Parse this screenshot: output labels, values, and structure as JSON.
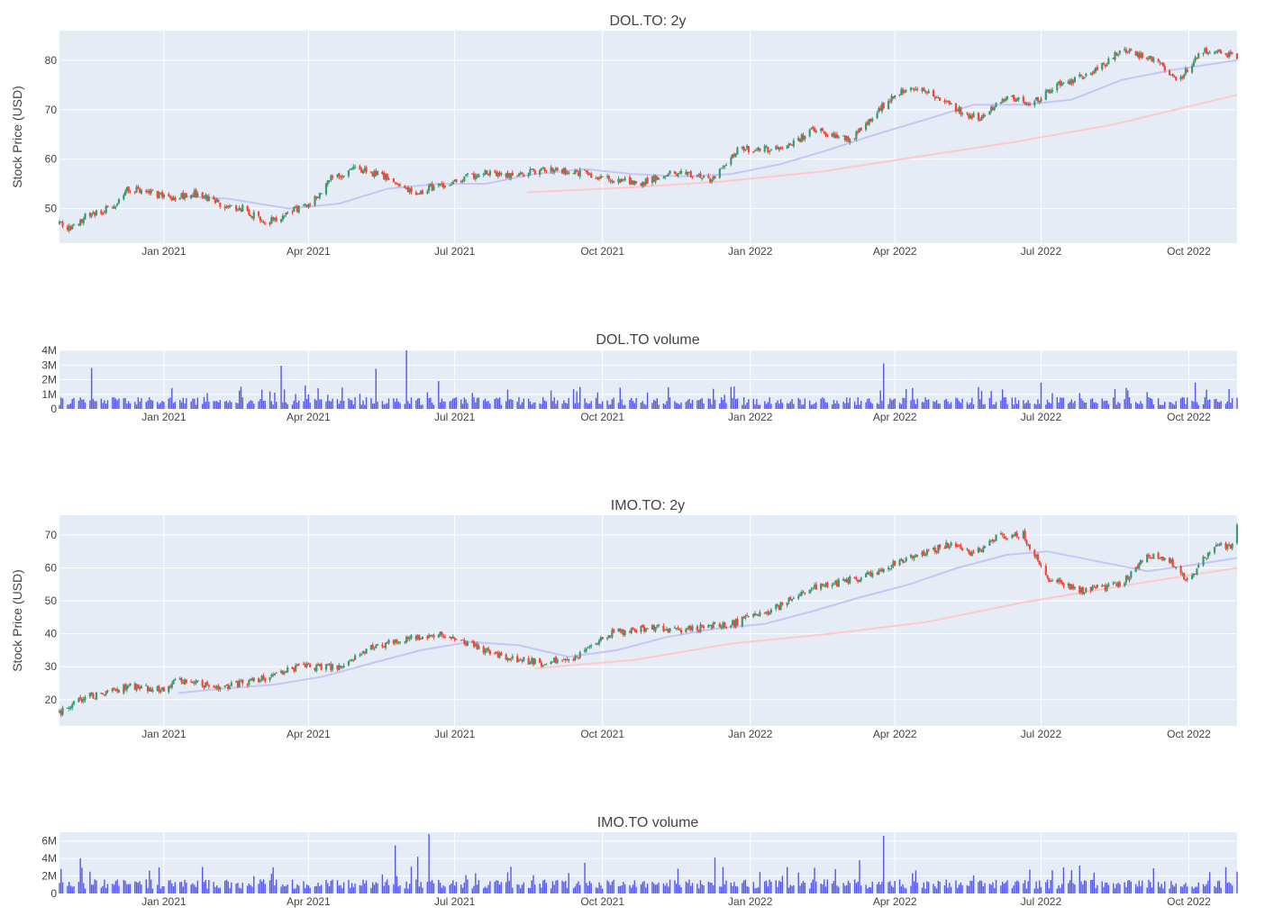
{
  "colors": {
    "plot_bg": "#e5ecf6",
    "grid": "#ffffff",
    "up": "#3d9970",
    "down": "#ff4136",
    "ma_short": "#c5c5f7",
    "ma_long": "#ffc8c8",
    "volume": "#5656f0"
  },
  "chart_data": [
    {
      "id": "dol-price",
      "type": "candlestick",
      "title": "DOL.TO:  2y",
      "ylabel": "Stock Price (USD)",
      "x_range": [
        "2020-10-28",
        "2022-10-31"
      ],
      "ylim": [
        43,
        86
      ],
      "y_ticks": [
        50,
        60,
        70,
        80
      ],
      "x_ticks": [
        "Jan 2021",
        "Apr 2021",
        "Jul 2021",
        "Oct 2021",
        "Jan 2022",
        "Apr 2022",
        "Jul 2022",
        "Oct 2022"
      ],
      "close_path": [
        [
          "2020-10-28",
          47
        ],
        [
          "2020-11-05",
          46
        ],
        [
          "2020-11-15",
          49
        ],
        [
          "2020-11-30",
          50
        ],
        [
          "2020-12-10",
          54
        ],
        [
          "2020-12-25",
          53
        ],
        [
          "2021-01-05",
          52
        ],
        [
          "2021-01-20",
          53
        ],
        [
          "2021-02-05",
          51
        ],
        [
          "2021-02-20",
          50
        ],
        [
          "2021-03-05",
          47
        ],
        [
          "2021-03-20",
          49
        ],
        [
          "2021-04-05",
          52
        ],
        [
          "2021-04-15",
          56
        ],
        [
          "2021-04-30",
          58
        ],
        [
          "2021-05-15",
          57
        ],
        [
          "2021-06-05",
          53
        ],
        [
          "2021-06-25",
          55
        ],
        [
          "2021-07-15",
          57
        ],
        [
          "2021-08-10",
          57
        ],
        [
          "2021-08-31",
          58
        ],
        [
          "2021-09-20",
          57
        ],
        [
          "2021-10-05",
          56
        ],
        [
          "2021-10-25",
          55
        ],
        [
          "2021-11-10",
          57
        ],
        [
          "2021-11-30",
          57
        ],
        [
          "2021-12-08",
          56
        ],
        [
          "2021-12-25",
          62
        ],
        [
          "2022-01-20",
          62
        ],
        [
          "2022-02-10",
          66
        ],
        [
          "2022-03-05",
          64
        ],
        [
          "2022-03-25",
          71
        ],
        [
          "2022-04-10",
          75
        ],
        [
          "2022-04-25",
          73
        ],
        [
          "2022-05-10",
          70
        ],
        [
          "2022-05-25",
          68
        ],
        [
          "2022-06-10",
          73
        ],
        [
          "2022-06-25",
          71
        ],
        [
          "2022-07-10",
          75
        ],
        [
          "2022-07-31",
          77
        ],
        [
          "2022-08-20",
          82
        ],
        [
          "2022-09-10",
          80
        ],
        [
          "2022-09-25",
          76
        ],
        [
          "2022-10-10",
          82
        ],
        [
          "2022-10-31",
          81
        ]
      ],
      "ma_short": [
        [
          "2021-01-12",
          52.5
        ],
        [
          "2021-02-10",
          52
        ],
        [
          "2021-03-20",
          50
        ],
        [
          "2021-04-20",
          51
        ],
        [
          "2021-05-20",
          54
        ],
        [
          "2021-06-20",
          55
        ],
        [
          "2021-07-20",
          55
        ],
        [
          "2021-08-20",
          57
        ],
        [
          "2021-09-20",
          58
        ],
        [
          "2021-10-20",
          57
        ],
        [
          "2021-11-20",
          56.5
        ],
        [
          "2021-12-20",
          57
        ],
        [
          "2022-01-20",
          59
        ],
        [
          "2022-02-20",
          62
        ],
        [
          "2022-03-20",
          65
        ],
        [
          "2022-04-20",
          68
        ],
        [
          "2022-05-20",
          71
        ],
        [
          "2022-06-20",
          71
        ],
        [
          "2022-07-20",
          72
        ],
        [
          "2022-08-20",
          76
        ],
        [
          "2022-09-20",
          78
        ],
        [
          "2022-10-31",
          80
        ]
      ],
      "ma_long": [
        [
          "2021-08-15",
          53.3
        ],
        [
          "2021-10-15",
          54.2
        ],
        [
          "2021-12-15",
          55.5
        ],
        [
          "2022-02-15",
          57.5
        ],
        [
          "2022-04-15",
          60.5
        ],
        [
          "2022-06-15",
          63.5
        ],
        [
          "2022-08-15",
          67
        ],
        [
          "2022-10-31",
          73
        ]
      ]
    },
    {
      "id": "dol-volume",
      "type": "bar",
      "title": "DOL.TO volume",
      "x_range": [
        "2020-10-28",
        "2022-10-31"
      ],
      "ylim": [
        0,
        4000000
      ],
      "y_ticks": [
        0,
        1000000,
        2000000,
        3000000,
        4000000
      ],
      "y_tick_labels": [
        "0",
        "1M",
        "2M",
        "3M",
        "4M"
      ],
      "x_ticks": [
        "Jan 2021",
        "Apr 2021",
        "Jul 2021",
        "Oct 2021",
        "Jan 2022",
        "Apr 2022",
        "Jul 2022",
        "Oct 2022"
      ],
      "typical_volume": 600000,
      "spikes": [
        [
          "2020-11-17",
          2800000
        ],
        [
          "2021-03-15",
          2950000
        ],
        [
          "2021-05-13",
          2750000
        ],
        [
          "2021-06-01",
          4000000
        ],
        [
          "2021-03-30",
          1600000
        ],
        [
          "2021-06-20",
          1900000
        ],
        [
          "2021-09-17",
          1500000
        ],
        [
          "2021-12-20",
          1500000
        ],
        [
          "2022-03-25",
          3100000
        ],
        [
          "2022-07-01",
          1800000
        ],
        [
          "2022-10-05",
          1800000
        ]
      ]
    },
    {
      "id": "imo-price",
      "type": "candlestick",
      "title": "IMO.TO:  2y",
      "ylabel": "Stock Price (USD)",
      "x_range": [
        "2020-10-28",
        "2022-10-31"
      ],
      "ylim": [
        12,
        76
      ],
      "y_ticks": [
        20,
        30,
        40,
        50,
        60,
        70
      ],
      "x_ticks": [
        "Jan 2021",
        "Apr 2021",
        "Jul 2021",
        "Oct 2021",
        "Jan 2022",
        "Apr 2022",
        "Jul 2022",
        "Oct 2022"
      ],
      "close_path": [
        [
          "2020-10-28",
          16
        ],
        [
          "2020-11-15",
          21
        ],
        [
          "2020-12-10",
          24
        ],
        [
          "2021-01-01",
          23
        ],
        [
          "2021-01-10",
          26
        ],
        [
          "2021-02-05",
          24
        ],
        [
          "2021-03-01",
          26
        ],
        [
          "2021-03-25",
          30
        ],
        [
          "2021-04-20",
          30
        ],
        [
          "2021-05-10",
          36
        ],
        [
          "2021-05-30",
          38
        ],
        [
          "2021-06-20",
          40
        ],
        [
          "2021-07-10",
          37
        ],
        [
          "2021-07-30",
          33
        ],
        [
          "2021-08-25",
          31
        ],
        [
          "2021-09-15",
          33
        ],
        [
          "2021-10-05",
          40
        ],
        [
          "2021-10-30",
          42
        ],
        [
          "2021-11-20",
          41
        ],
        [
          "2021-12-20",
          43
        ],
        [
          "2022-01-10",
          46
        ],
        [
          "2022-02-10",
          54
        ],
        [
          "2022-03-10",
          57
        ],
        [
          "2022-04-10",
          63
        ],
        [
          "2022-05-05",
          67
        ],
        [
          "2022-05-20",
          64
        ],
        [
          "2022-06-05",
          70
        ],
        [
          "2022-06-20",
          70
        ],
        [
          "2022-07-05",
          57
        ],
        [
          "2022-07-25",
          53
        ],
        [
          "2022-08-20",
          55
        ],
        [
          "2022-09-05",
          64
        ],
        [
          "2022-09-20",
          62
        ],
        [
          "2022-09-30",
          56
        ],
        [
          "2022-10-15",
          66
        ],
        [
          "2022-10-30",
          67
        ],
        [
          "2022-10-31",
          73
        ]
      ],
      "ma_short": [
        [
          "2021-01-10",
          22
        ],
        [
          "2021-02-10",
          23.5
        ],
        [
          "2021-03-10",
          24.5
        ],
        [
          "2021-04-10",
          27
        ],
        [
          "2021-05-10",
          31
        ],
        [
          "2021-06-10",
          35
        ],
        [
          "2021-07-10",
          37.5
        ],
        [
          "2021-08-10",
          36.5
        ],
        [
          "2021-09-10",
          33
        ],
        [
          "2021-10-10",
          35
        ],
        [
          "2021-11-10",
          39
        ],
        [
          "2021-12-10",
          41.5
        ],
        [
          "2022-01-10",
          43
        ],
        [
          "2022-02-10",
          47
        ],
        [
          "2022-03-10",
          51
        ],
        [
          "2022-04-10",
          55
        ],
        [
          "2022-05-10",
          60
        ],
        [
          "2022-06-10",
          64
        ],
        [
          "2022-07-05",
          65
        ],
        [
          "2022-08-05",
          62
        ],
        [
          "2022-09-05",
          59
        ],
        [
          "2022-10-05",
          61
        ],
        [
          "2022-10-31",
          63
        ]
      ],
      "ma_long": [
        [
          "2021-08-20",
          29.5
        ],
        [
          "2021-10-20",
          32
        ],
        [
          "2021-12-20",
          37
        ],
        [
          "2022-02-20",
          40
        ],
        [
          "2022-04-20",
          43.5
        ],
        [
          "2022-06-20",
          49.5
        ],
        [
          "2022-08-20",
          54.5
        ],
        [
          "2022-10-31",
          60
        ]
      ]
    },
    {
      "id": "imo-volume",
      "type": "bar",
      "title": "IMO.TO volume",
      "x_range": [
        "2020-10-28",
        "2022-10-31"
      ],
      "ylim": [
        0,
        7000000
      ],
      "y_ticks": [
        0,
        2000000,
        4000000,
        6000000
      ],
      "y_tick_labels": [
        "0",
        "2M",
        "4M",
        "6M"
      ],
      "x_ticks": [
        "Jan 2021",
        "Apr 2021",
        "Jul 2021",
        "Oct 2021",
        "Jan 2022",
        "Apr 2022",
        "Jul 2022",
        "Oct 2022"
      ],
      "typical_volume": 1200000,
      "spikes": [
        [
          "2020-11-10",
          4000000
        ],
        [
          "2021-05-25",
          5500000
        ],
        [
          "2021-06-15",
          6800000
        ],
        [
          "2021-06-08",
          4200000
        ],
        [
          "2021-03-10",
          3000000
        ],
        [
          "2021-09-20",
          3500000
        ],
        [
          "2021-12-10",
          4100000
        ],
        [
          "2022-03-25",
          6600000
        ],
        [
          "2022-03-10",
          3800000
        ],
        [
          "2022-07-25",
          3200000
        ],
        [
          "2022-10-31",
          2500000
        ]
      ]
    }
  ]
}
